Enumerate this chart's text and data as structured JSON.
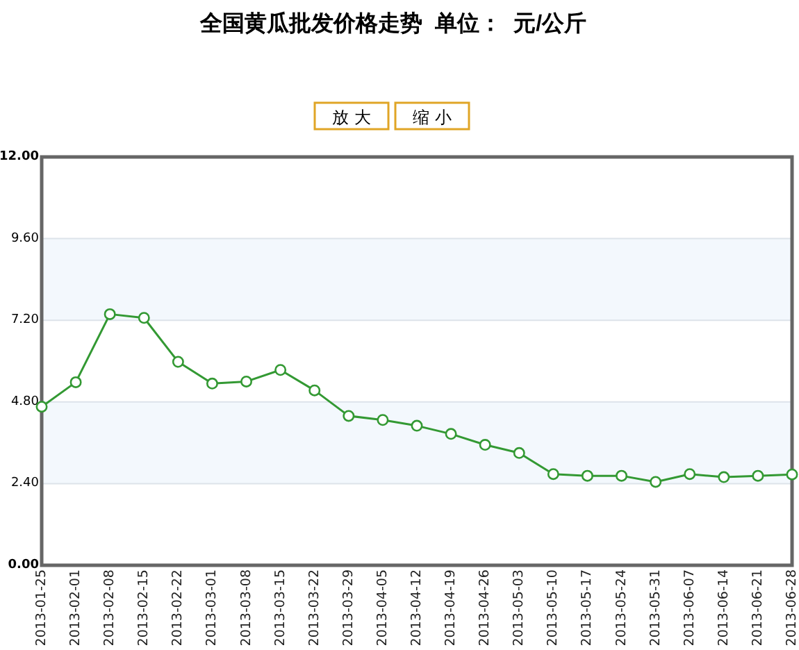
{
  "chart_data": {
    "type": "line",
    "title": "全国黄瓜批发价格走势  单位：  元/公斤",
    "annotations": [
      "放 大",
      "缩 小"
    ],
    "categories": [
      "2013-01-25",
      "2013-02-01",
      "2013-02-08",
      "2013-02-15",
      "2013-02-22",
      "2013-03-01",
      "2013-03-08",
      "2013-03-15",
      "2013-03-22",
      "2013-03-29",
      "2013-04-05",
      "2013-04-12",
      "2013-04-19",
      "2013-04-26",
      "2013-05-03",
      "2013-05-10",
      "2013-05-17",
      "2013-05-24",
      "2013-05-31",
      "2013-06-07",
      "2013-06-14",
      "2013-06-21",
      "2013-06-28"
    ],
    "series": [
      {
        "color": "#339933",
        "values": [
          4.66,
          5.38,
          7.38,
          7.27,
          5.98,
          5.34,
          5.4,
          5.74,
          5.14,
          4.39,
          4.27,
          4.1,
          3.86,
          3.54,
          3.3,
          2.68,
          2.63,
          2.63,
          2.45,
          2.68,
          2.59,
          2.63,
          2.67
        ]
      }
    ],
    "ylim": [
      0,
      12
    ],
    "yticks": [
      {
        "value": 0,
        "label": "0.00"
      },
      {
        "value": 2.4,
        "label": "2.40"
      },
      {
        "value": 4.8,
        "label": "4.80"
      },
      {
        "value": 7.2,
        "label": "7.20"
      },
      {
        "value": 9.6,
        "label": "9.60"
      },
      {
        "value": 12,
        "label": "12.00"
      }
    ],
    "grid": "y",
    "bands": [
      {
        "axis": "y",
        "from": 2.4,
        "to": 4.8,
        "color": "#f3f8fd"
      },
      {
        "axis": "y",
        "from": 7.2,
        "to": 9.6,
        "color": "#f3f8fd"
      }
    ],
    "marker": "circle"
  }
}
